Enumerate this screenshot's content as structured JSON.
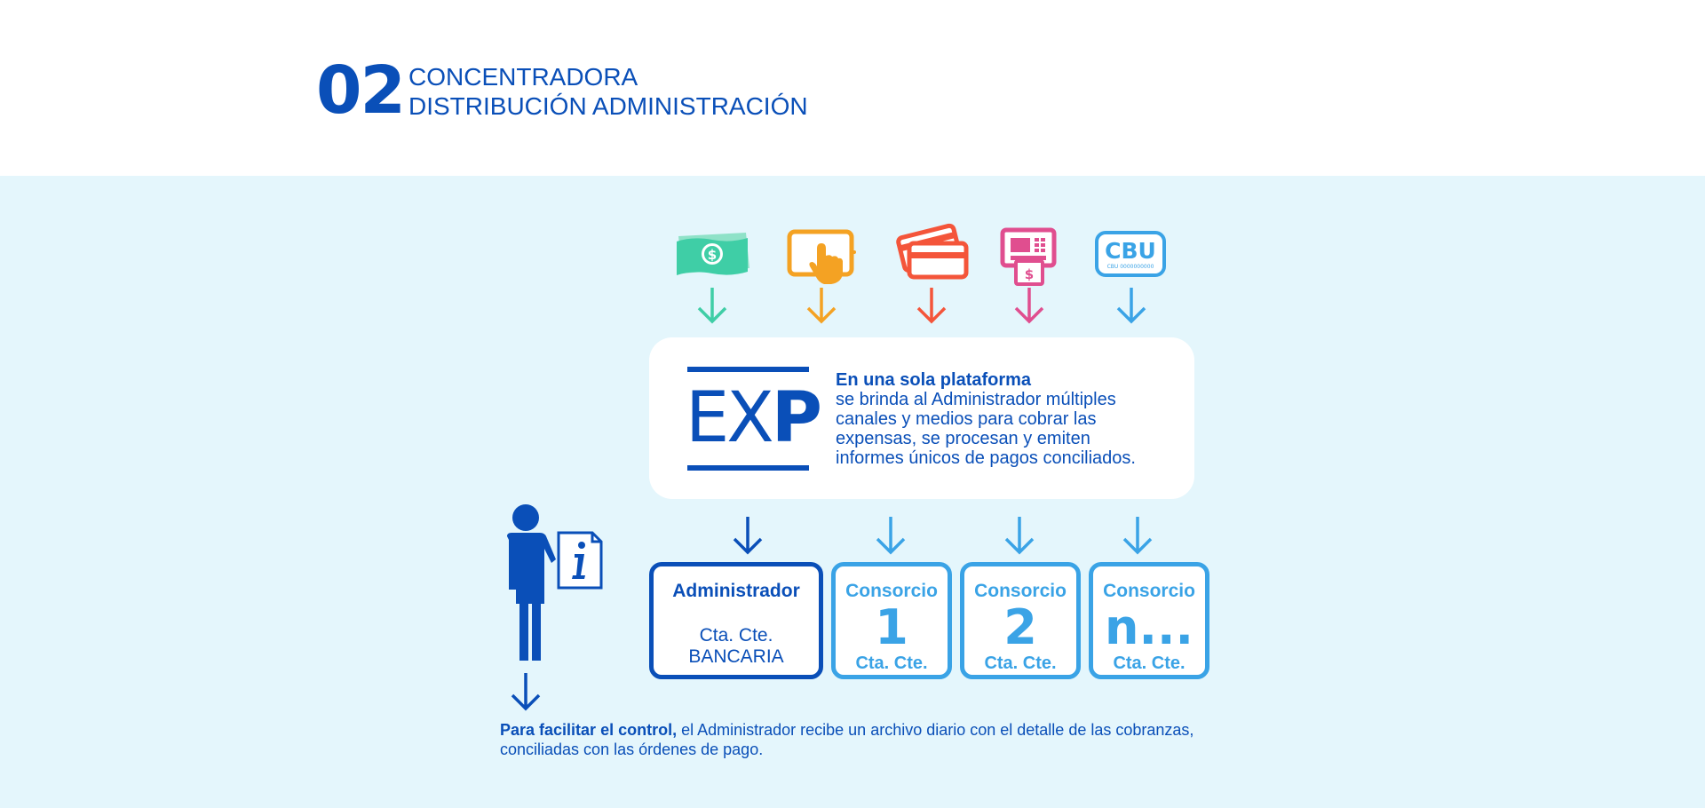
{
  "header": {
    "number": "02",
    "title_line1": "CONCENTRADORA",
    "title_line2": "DISTRIBUCIÓN ADMINISTRACIÓN"
  },
  "payment_channels": [
    {
      "icon": "cash-icon",
      "color": "#3fcea6"
    },
    {
      "icon": "tablet-touch-icon",
      "color": "#f4a223"
    },
    {
      "icon": "credit-cards-icon",
      "color": "#f4553a"
    },
    {
      "icon": "atm-icon",
      "color": "#e04e8f"
    },
    {
      "icon": "cbu-icon",
      "color": "#3aa3e6",
      "label": "CBU",
      "sublabel": "CBU 0000000000"
    }
  ],
  "platform": {
    "logo": "EXP",
    "lead": "En una sola plataforma",
    "body_lines": [
      "se  brinda al Administrador múltiples",
      "canales y medios para cobrar las",
      "expensas, se procesan y emiten",
      "informes únicos  de pagos conciliados."
    ]
  },
  "accounts": {
    "administrador": {
      "title": "Administrador",
      "line1": "Cta. Cte.",
      "line2": "BANCARIA"
    },
    "consorcios": [
      {
        "title": "Consorcio",
        "number": "1",
        "account": "Cta. Cte."
      },
      {
        "title": "Consorcio",
        "number": "2",
        "account": "Cta. Cte."
      },
      {
        "title": "Consorcio",
        "number": "n...",
        "account": "Cta. Cte."
      }
    ]
  },
  "footer": {
    "bold": "Para facilitar el control,",
    "rest": " el Administrador recibe un archivo diario con el detalle de las cobranzas,",
    "line2": "conciliadas con las órdenes de pago."
  },
  "colors": {
    "primary": "#0a4fb8",
    "secondary": "#3aa3e6",
    "background": "#e4f6fc"
  }
}
